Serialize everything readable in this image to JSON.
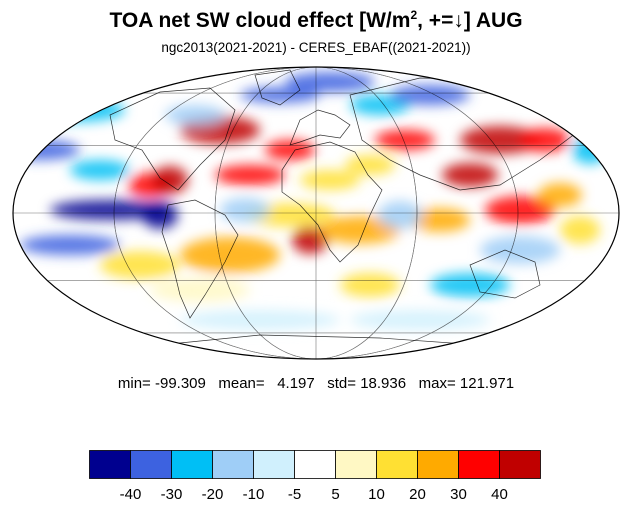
{
  "title": {
    "main": "TOA net SW cloud effect [W/m",
    "sup": "2",
    "rest": ", +=↓]  AUG"
  },
  "subtitle": "ngc2013(2021-2021) - CERES_EBAF((2021-2021))",
  "stats": {
    "min_label": "min=",
    "min": "-99.309",
    "mean_label": "mean=",
    "mean": "4.197",
    "std_label": "std=",
    "std": "18.936",
    "max_label": "max=",
    "max": "121.971"
  },
  "colorbar": {
    "colors": [
      "#00008f",
      "#3d62e0",
      "#00bff5",
      "#9fcef7",
      "#d0f0fd",
      "#ffffff",
      "#fff8c4",
      "#ffe033",
      "#ffaa00",
      "#ff0000",
      "#c00000"
    ],
    "tick_labels": [
      "-40",
      "-30",
      "-20",
      "-10",
      "-5",
      "5",
      "10",
      "20",
      "30",
      "40"
    ]
  },
  "map": {
    "projection": "mollweide",
    "gridlines": "on"
  }
}
